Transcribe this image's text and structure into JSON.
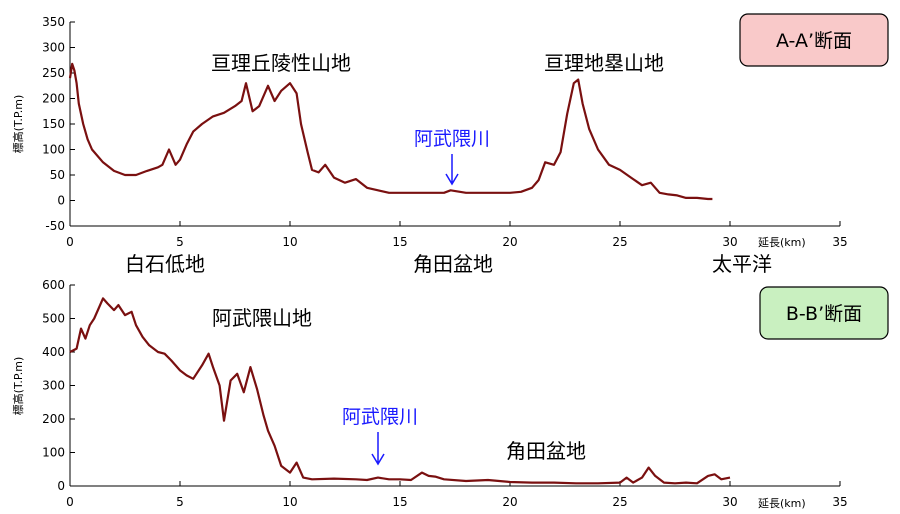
{
  "colors": {
    "profile_line": "#7a1010",
    "river_label": "#1a1aff",
    "badge_a_fill": "#f9c9c9",
    "badge_b_fill": "#c9f0c0"
  },
  "chart_data": [
    {
      "type": "line",
      "badge": "A-A’断面",
      "ylabel": "標高(T.P.m)",
      "xlabel": "延長(km)",
      "xlim": [
        0,
        35
      ],
      "ylim": [
        -50,
        350
      ],
      "x_ticks": [
        "0",
        "5",
        "10",
        "15",
        "20",
        "25",
        "30",
        "35"
      ],
      "y_ticks": [
        "-50",
        "0",
        "50",
        "100",
        "150",
        "200",
        "250",
        "300",
        "350"
      ],
      "annotations": [
        {
          "text": "亘理丘陵性山地"
        },
        {
          "text": "亘理地塁山地"
        },
        {
          "text": "阿武隈川"
        }
      ],
      "series": [
        {
          "x": [
            0,
            0.1,
            0.2,
            0.3,
            0.4,
            0.6,
            0.8,
            1,
            1.5,
            2,
            2.5,
            3,
            3.5,
            4,
            4.2,
            4.5,
            4.8,
            5,
            5.3,
            5.6,
            6,
            6.5,
            7,
            7.5,
            7.8,
            8,
            8.3,
            8.6,
            9,
            9.3,
            9.6,
            10,
            10.3,
            10.5,
            10.8,
            11,
            11.3,
            11.6,
            12,
            12.5,
            13,
            13.5,
            14,
            14.5,
            15,
            16,
            17,
            17.3,
            18,
            19,
            20,
            20.5,
            21,
            21.3,
            21.6,
            22,
            22.3,
            22.6,
            22.9,
            23.1,
            23.3,
            23.6,
            24,
            24.5,
            25,
            25.5,
            26,
            26.4,
            26.8,
            27.2,
            27.6,
            28,
            28.5,
            29,
            29.2
          ],
          "values": [
            240,
            268,
            255,
            230,
            190,
            150,
            120,
            100,
            75,
            58,
            50,
            50,
            58,
            65,
            70,
            100,
            70,
            80,
            110,
            135,
            150,
            165,
            172,
            185,
            195,
            230,
            175,
            185,
            225,
            195,
            215,
            230,
            210,
            150,
            95,
            60,
            55,
            70,
            45,
            35,
            42,
            25,
            20,
            15,
            15,
            15,
            15,
            20,
            15,
            15,
            15,
            17,
            25,
            40,
            75,
            70,
            95,
            170,
            230,
            237,
            190,
            140,
            100,
            70,
            60,
            45,
            30,
            35,
            15,
            12,
            10,
            5,
            5,
            3,
            3
          ]
        }
      ]
    },
    {
      "type": "line",
      "badge": "B-B’断面",
      "ylabel": "標高(T.P.m)",
      "xlabel": "延長(km)",
      "xlim": [
        0,
        35
      ],
      "ylim": [
        0,
        600
      ],
      "x_ticks": [
        "0",
        "5",
        "10",
        "15",
        "20",
        "25",
        "30",
        "35"
      ],
      "y_ticks": [
        "0",
        "100",
        "200",
        "300",
        "400",
        "500",
        "600"
      ],
      "annotations": [
        {
          "text": "白石低地"
        },
        {
          "text": "角田盆地"
        },
        {
          "text": "太平洋"
        },
        {
          "text": "阿武隈山地"
        },
        {
          "text": "阿武隈川"
        },
        {
          "text": "角田盆地"
        }
      ],
      "series": [
        {
          "x": [
            0,
            0.3,
            0.5,
            0.7,
            0.9,
            1.1,
            1.3,
            1.5,
            1.7,
            2,
            2.2,
            2.5,
            2.8,
            3,
            3.3,
            3.6,
            4,
            4.3,
            4.6,
            5,
            5.3,
            5.6,
            6,
            6.3,
            6.5,
            6.8,
            7,
            7.3,
            7.6,
            7.9,
            8.2,
            8.5,
            8.8,
            9,
            9.3,
            9.6,
            10,
            10.3,
            10.6,
            11,
            12,
            13,
            13.5,
            14,
            14.5,
            15,
            15.5,
            16,
            16.3,
            16.6,
            17,
            18,
            19,
            20,
            21,
            22,
            23,
            24,
            25,
            25.3,
            25.6,
            26,
            26.3,
            26.6,
            27,
            27.5,
            28,
            28.5,
            29,
            29.3,
            29.6,
            30
          ],
          "values": [
            400,
            410,
            470,
            440,
            480,
            500,
            530,
            560,
            545,
            525,
            540,
            510,
            520,
            480,
            445,
            420,
            400,
            395,
            375,
            345,
            330,
            320,
            360,
            395,
            355,
            300,
            195,
            315,
            335,
            280,
            355,
            290,
            210,
            165,
            120,
            60,
            40,
            70,
            25,
            20,
            22,
            20,
            18,
            25,
            20,
            20,
            18,
            40,
            30,
            28,
            20,
            15,
            18,
            12,
            10,
            10,
            8,
            8,
            10,
            25,
            10,
            25,
            55,
            30,
            10,
            8,
            10,
            8,
            30,
            35,
            20,
            25
          ]
        }
      ]
    }
  ]
}
